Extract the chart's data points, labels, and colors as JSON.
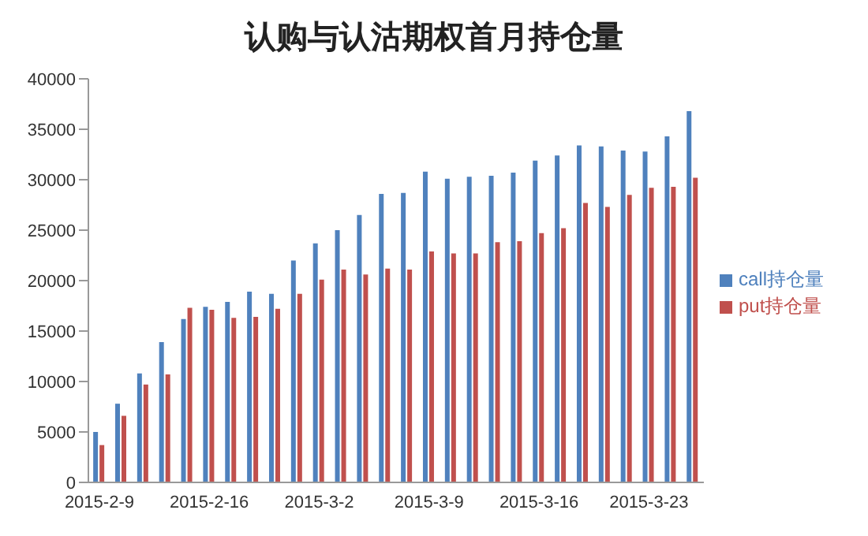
{
  "chart_data": {
    "type": "bar",
    "title": "认购与认沽期权首月持仓量",
    "categories": [
      "2015-2-9",
      null,
      null,
      null,
      null,
      "2015-2-16",
      null,
      null,
      null,
      null,
      "2015-3-2",
      null,
      null,
      null,
      null,
      "2015-3-9",
      null,
      null,
      null,
      null,
      "2015-3-16",
      null,
      null,
      null,
      null,
      "2015-3-23",
      null,
      null
    ],
    "series": [
      {
        "name": "call持仓量",
        "color": "#4f81bd",
        "values": [
          5000,
          7800,
          10800,
          13900,
          16200,
          17400,
          17900,
          18900,
          18700,
          22000,
          23700,
          25000,
          26500,
          28600,
          28700,
          30800,
          30100,
          30300,
          30400,
          30700,
          31900,
          32400,
          33400,
          33300,
          32900,
          32800,
          34300,
          36800
        ]
      },
      {
        "name": "put持仓量",
        "color": "#c0504d",
        "values": [
          3700,
          6600,
          9700,
          10700,
          17300,
          17100,
          16300,
          16400,
          17200,
          18700,
          20100,
          21100,
          20600,
          21200,
          21100,
          22900,
          22700,
          22700,
          23800,
          23900,
          24700,
          25200,
          27700,
          27300,
          28500,
          29200,
          29300,
          30200
        ]
      }
    ],
    "ylim": [
      0,
      40000
    ],
    "yticks": [
      0,
      5000,
      10000,
      15000,
      20000,
      25000,
      30000,
      35000,
      40000
    ],
    "grid": false,
    "legend": "right"
  }
}
